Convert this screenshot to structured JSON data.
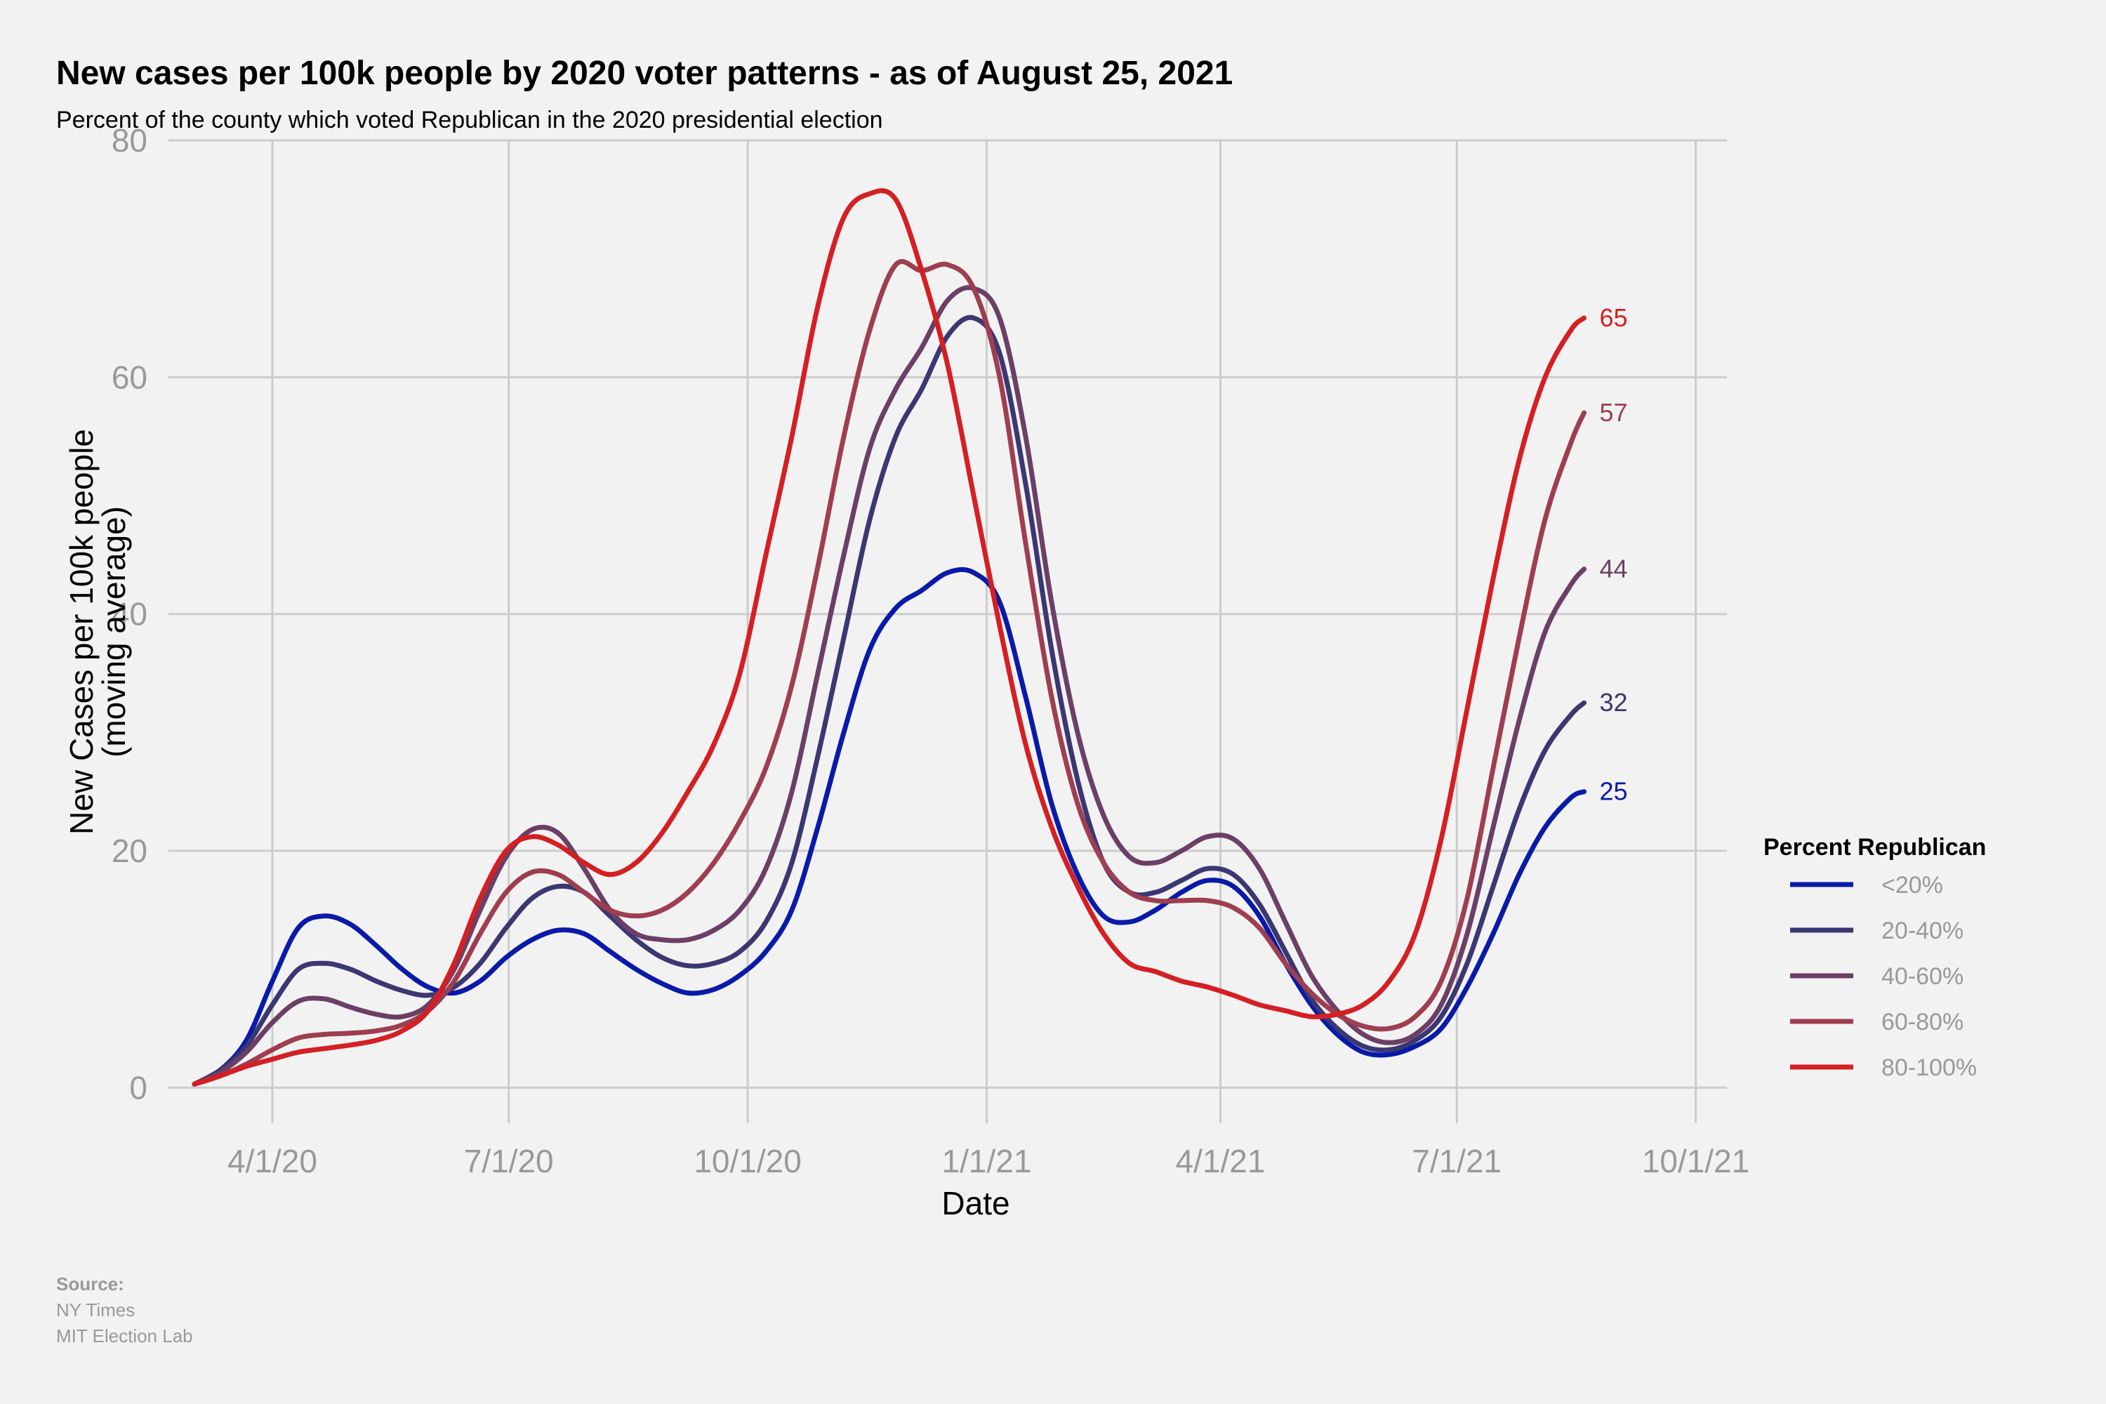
{
  "chart_data": {
    "type": "line",
    "title": "New cases per 100k people by 2020 voter patterns - as of August 25, 2021",
    "subtitle": "Percent of the county which voted Republican in the 2020 presidential election",
    "xlabel": "Date",
    "ylabel_line1": "New Cases per 100k people",
    "ylabel_line2": "(moving average)",
    "x_ticks": [
      "4/1/20",
      "7/1/20",
      "10/1/20",
      "1/1/21",
      "4/1/21",
      "7/1/21",
      "10/1/21"
    ],
    "x_tick_days": [
      0,
      91,
      183,
      275,
      365,
      456,
      548
    ],
    "xlim_days": [
      -40,
      560
    ],
    "ylim": [
      -3,
      80
    ],
    "y_ticks": [
      0,
      20,
      40,
      60,
      80
    ],
    "y_tick_labels": [
      "0",
      "20",
      "40",
      "60",
      "80"
    ],
    "grid": true,
    "legend_position": "right",
    "legend_title": "Percent Republican",
    "x_unit": "days since 4/1/20",
    "series": [
      {
        "name": "<20%",
        "color": "#0a1aa8",
        "end_label": "25",
        "points": [
          [
            -30,
            0.3
          ],
          [
            -20,
            1.5
          ],
          [
            -10,
            4
          ],
          [
            0,
            9
          ],
          [
            10,
            13.5
          ],
          [
            20,
            14.5
          ],
          [
            30,
            13.8
          ],
          [
            40,
            12
          ],
          [
            50,
            10
          ],
          [
            60,
            8.5
          ],
          [
            70,
            8
          ],
          [
            80,
            9
          ],
          [
            90,
            11
          ],
          [
            100,
            12.5
          ],
          [
            110,
            13.3
          ],
          [
            120,
            13
          ],
          [
            130,
            11.5
          ],
          [
            140,
            10
          ],
          [
            150,
            8.8
          ],
          [
            160,
            8
          ],
          [
            170,
            8.3
          ],
          [
            180,
            9.5
          ],
          [
            190,
            11.5
          ],
          [
            200,
            15
          ],
          [
            210,
            22
          ],
          [
            220,
            30
          ],
          [
            230,
            37
          ],
          [
            240,
            40.5
          ],
          [
            250,
            42
          ],
          [
            260,
            43.5
          ],
          [
            270,
            43.5
          ],
          [
            280,
            41
          ],
          [
            290,
            33
          ],
          [
            300,
            24
          ],
          [
            310,
            18
          ],
          [
            320,
            14.5
          ],
          [
            330,
            14
          ],
          [
            340,
            15
          ],
          [
            350,
            16.5
          ],
          [
            360,
            17.5
          ],
          [
            370,
            17
          ],
          [
            380,
            14.5
          ],
          [
            390,
            10.5
          ],
          [
            400,
            7
          ],
          [
            410,
            4.5
          ],
          [
            420,
            3
          ],
          [
            430,
            2.8
          ],
          [
            440,
            3.5
          ],
          [
            450,
            5
          ],
          [
            460,
            8.5
          ],
          [
            470,
            13
          ],
          [
            480,
            18
          ],
          [
            490,
            22
          ],
          [
            500,
            24.5
          ],
          [
            505,
            25
          ]
        ]
      },
      {
        "name": "20-40%",
        "color": "#3b3772",
        "end_label": "32",
        "points": [
          [
            -30,
            0.3
          ],
          [
            -20,
            1.5
          ],
          [
            -10,
            3.5
          ],
          [
            0,
            7
          ],
          [
            10,
            10
          ],
          [
            20,
            10.5
          ],
          [
            30,
            10
          ],
          [
            40,
            9
          ],
          [
            50,
            8.2
          ],
          [
            60,
            7.8
          ],
          [
            70,
            8.5
          ],
          [
            80,
            10.5
          ],
          [
            90,
            13.5
          ],
          [
            100,
            16
          ],
          [
            110,
            17
          ],
          [
            120,
            16.5
          ],
          [
            130,
            14.5
          ],
          [
            140,
            12.5
          ],
          [
            150,
            11
          ],
          [
            160,
            10.3
          ],
          [
            170,
            10.5
          ],
          [
            180,
            11.5
          ],
          [
            190,
            14
          ],
          [
            200,
            19
          ],
          [
            210,
            28
          ],
          [
            220,
            38
          ],
          [
            230,
            48
          ],
          [
            240,
            55
          ],
          [
            250,
            59
          ],
          [
            260,
            63.5
          ],
          [
            270,
            65
          ],
          [
            280,
            62
          ],
          [
            290,
            51
          ],
          [
            300,
            37
          ],
          [
            310,
            26
          ],
          [
            320,
            19
          ],
          [
            330,
            16.5
          ],
          [
            340,
            16.5
          ],
          [
            350,
            17.5
          ],
          [
            360,
            18.5
          ],
          [
            370,
            18
          ],
          [
            380,
            15.5
          ],
          [
            390,
            11.5
          ],
          [
            400,
            7.5
          ],
          [
            410,
            5
          ],
          [
            420,
            3.5
          ],
          [
            430,
            3.2
          ],
          [
            440,
            4
          ],
          [
            450,
            6
          ],
          [
            460,
            10.5
          ],
          [
            470,
            17
          ],
          [
            480,
            23.5
          ],
          [
            490,
            28.5
          ],
          [
            500,
            31.5
          ],
          [
            505,
            32.5
          ]
        ]
      },
      {
        "name": "40-60%",
        "color": "#6b3f66",
        "end_label": "44",
        "points": [
          [
            -30,
            0.3
          ],
          [
            -20,
            1.3
          ],
          [
            -10,
            3
          ],
          [
            0,
            5.5
          ],
          [
            10,
            7.3
          ],
          [
            20,
            7.5
          ],
          [
            30,
            6.8
          ],
          [
            40,
            6.2
          ],
          [
            50,
            6
          ],
          [
            60,
            7
          ],
          [
            70,
            10
          ],
          [
            80,
            15
          ],
          [
            90,
            19.5
          ],
          [
            100,
            21.8
          ],
          [
            110,
            21.5
          ],
          [
            120,
            18.5
          ],
          [
            130,
            15
          ],
          [
            140,
            13
          ],
          [
            150,
            12.5
          ],
          [
            160,
            12.5
          ],
          [
            170,
            13.3
          ],
          [
            180,
            15
          ],
          [
            190,
            18.5
          ],
          [
            200,
            25
          ],
          [
            210,
            35
          ],
          [
            220,
            45
          ],
          [
            230,
            54
          ],
          [
            240,
            59
          ],
          [
            250,
            62.5
          ],
          [
            260,
            66.5
          ],
          [
            270,
            67.5
          ],
          [
            280,
            65
          ],
          [
            290,
            55
          ],
          [
            300,
            41
          ],
          [
            310,
            30
          ],
          [
            320,
            23
          ],
          [
            330,
            19.5
          ],
          [
            340,
            19
          ],
          [
            350,
            20
          ],
          [
            360,
            21.2
          ],
          [
            370,
            21
          ],
          [
            380,
            18.5
          ],
          [
            390,
            14
          ],
          [
            400,
            9.5
          ],
          [
            410,
            6.5
          ],
          [
            420,
            4.5
          ],
          [
            430,
            3.8
          ],
          [
            440,
            4.5
          ],
          [
            450,
            7
          ],
          [
            460,
            13
          ],
          [
            470,
            22
          ],
          [
            480,
            31
          ],
          [
            490,
            38.5
          ],
          [
            500,
            42.5
          ],
          [
            505,
            43.8
          ]
        ]
      },
      {
        "name": "60-80%",
        "color": "#9e3e50",
        "end_label": "57",
        "points": [
          [
            -30,
            0.3
          ],
          [
            -20,
            1
          ],
          [
            -10,
            2
          ],
          [
            0,
            3.2
          ],
          [
            10,
            4.2
          ],
          [
            20,
            4.5
          ],
          [
            30,
            4.6
          ],
          [
            40,
            4.8
          ],
          [
            50,
            5.3
          ],
          [
            60,
            6.5
          ],
          [
            70,
            9
          ],
          [
            80,
            13
          ],
          [
            90,
            16.5
          ],
          [
            100,
            18.2
          ],
          [
            110,
            18
          ],
          [
            120,
            16.5
          ],
          [
            130,
            15
          ],
          [
            140,
            14.5
          ],
          [
            150,
            15
          ],
          [
            160,
            16.5
          ],
          [
            170,
            19
          ],
          [
            180,
            22.5
          ],
          [
            190,
            27
          ],
          [
            200,
            34
          ],
          [
            210,
            44
          ],
          [
            220,
            55
          ],
          [
            230,
            64
          ],
          [
            240,
            69.5
          ],
          [
            250,
            69
          ],
          [
            260,
            69.5
          ],
          [
            270,
            67.5
          ],
          [
            280,
            60
          ],
          [
            290,
            46
          ],
          [
            300,
            33
          ],
          [
            310,
            24
          ],
          [
            320,
            19
          ],
          [
            330,
            16.5
          ],
          [
            340,
            15.8
          ],
          [
            350,
            15.8
          ],
          [
            360,
            15.8
          ],
          [
            370,
            15.2
          ],
          [
            380,
            13.5
          ],
          [
            390,
            10.5
          ],
          [
            400,
            8
          ],
          [
            410,
            6.2
          ],
          [
            420,
            5.2
          ],
          [
            430,
            5
          ],
          [
            440,
            6
          ],
          [
            450,
            9
          ],
          [
            460,
            16
          ],
          [
            470,
            27
          ],
          [
            480,
            38
          ],
          [
            490,
            48
          ],
          [
            500,
            54.5
          ],
          [
            505,
            57
          ]
        ]
      },
      {
        "name": "80-100%",
        "color": "#d41f23",
        "end_label": "65",
        "points": [
          [
            -30,
            0.3
          ],
          [
            -20,
            1
          ],
          [
            -10,
            1.8
          ],
          [
            0,
            2.4
          ],
          [
            10,
            3
          ],
          [
            20,
            3.3
          ],
          [
            30,
            3.6
          ],
          [
            40,
            4
          ],
          [
            50,
            4.8
          ],
          [
            60,
            6.5
          ],
          [
            70,
            10.5
          ],
          [
            80,
            16
          ],
          [
            90,
            20
          ],
          [
            100,
            21.2
          ],
          [
            110,
            20.5
          ],
          [
            120,
            19
          ],
          [
            130,
            18
          ],
          [
            140,
            19
          ],
          [
            150,
            21.5
          ],
          [
            160,
            25
          ],
          [
            170,
            29
          ],
          [
            180,
            35
          ],
          [
            190,
            45
          ],
          [
            200,
            55
          ],
          [
            210,
            66
          ],
          [
            220,
            73.5
          ],
          [
            230,
            75.5
          ],
          [
            240,
            75
          ],
          [
            250,
            69
          ],
          [
            260,
            61
          ],
          [
            270,
            50
          ],
          [
            280,
            39
          ],
          [
            290,
            29
          ],
          [
            300,
            22
          ],
          [
            310,
            17
          ],
          [
            320,
            13
          ],
          [
            330,
            10.5
          ],
          [
            340,
            9.8
          ],
          [
            350,
            9
          ],
          [
            360,
            8.5
          ],
          [
            370,
            7.8
          ],
          [
            380,
            7
          ],
          [
            390,
            6.5
          ],
          [
            400,
            6
          ],
          [
            410,
            6.2
          ],
          [
            420,
            7
          ],
          [
            430,
            9
          ],
          [
            440,
            13
          ],
          [
            450,
            21
          ],
          [
            460,
            32
          ],
          [
            470,
            43
          ],
          [
            480,
            53
          ],
          [
            490,
            60
          ],
          [
            500,
            64
          ],
          [
            505,
            65
          ]
        ]
      }
    ]
  },
  "source": {
    "heading": "Source:",
    "lines": [
      "NY Times",
      "MIT Election Lab"
    ]
  }
}
